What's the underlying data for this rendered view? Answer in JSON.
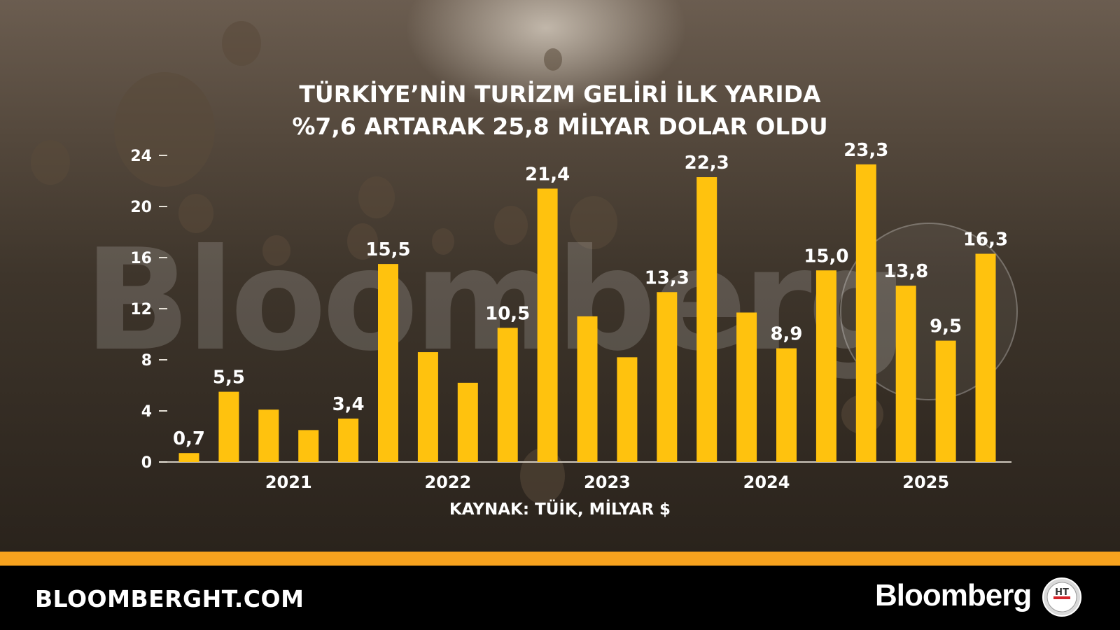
{
  "chart_data": {
    "type": "bar",
    "title_line1": "TÜRKİYE’NİN TURİZM GELİRİ İLK YARIDA",
    "title_line2": "%7,6 ARTARAK 25,8 MİLYAR DOLAR OLDU",
    "source": "KAYNAK: TÜİK, MİLYAR $",
    "ylim": [
      0,
      24
    ],
    "yticks": [
      0,
      4,
      8,
      12,
      16,
      20,
      24
    ],
    "ytick_labels": [
      "0",
      "4",
      "8",
      "12",
      "16",
      "20",
      "24"
    ],
    "year_labels": [
      {
        "label": "2021",
        "after_bar": 2.5
      },
      {
        "label": "2022",
        "after_bar": 6.5
      },
      {
        "label": "2023",
        "after_bar": 10.5
      },
      {
        "label": "2024",
        "after_bar": 14.5
      },
      {
        "label": "2025",
        "after_bar": 18.5
      }
    ],
    "values": [
      0.7,
      5.5,
      4.1,
      2.5,
      3.4,
      15.5,
      8.6,
      6.2,
      10.5,
      21.4,
      11.4,
      8.2,
      13.3,
      22.3,
      11.7,
      8.9,
      15.0,
      23.3,
      13.8,
      9.5,
      16.3
    ],
    "data_labels": [
      "0,7",
      "5,5",
      "",
      "",
      "3,4",
      "15,5",
      "",
      "",
      "10,5",
      "21,4",
      "",
      "",
      "13,3",
      "22,3",
      "",
      "8,9",
      "15,0",
      "23,3",
      "13,8",
      "9,5",
      "16,3"
    ],
    "bar_color": "#ffc20e",
    "grid": false
  },
  "watermark": "Bloomberg",
  "footer": {
    "site": "BLOOMBERGHT.COM",
    "brand": "Bloomberg",
    "logo_text": "HT"
  },
  "colors": {
    "accent_orange": "#f7a21e",
    "footer_bg": "#000000",
    "text": "#ffffff"
  }
}
